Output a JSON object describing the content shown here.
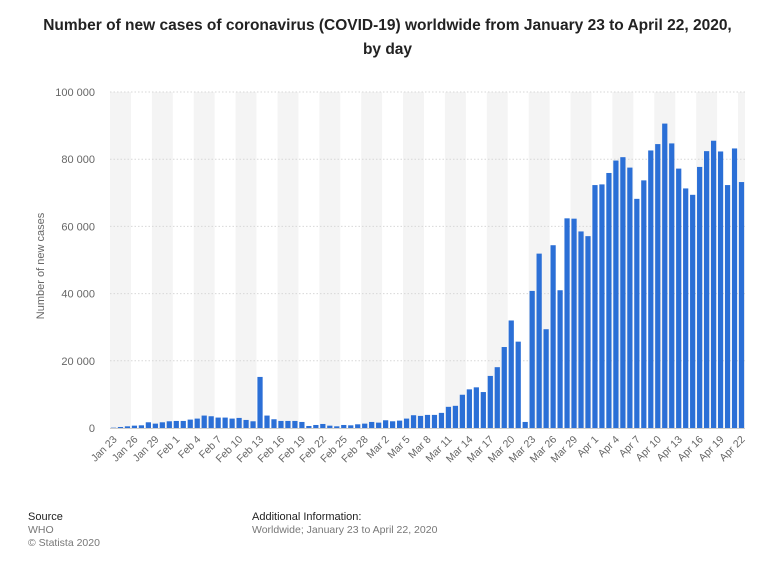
{
  "chart_data": {
    "type": "bar",
    "title": "Number of new cases of coronavirus (COVID-19) worldwide from January 23 to April 22, 2020, by day",
    "xlabel": "",
    "ylabel": "Number of new cases",
    "ylim": [
      0,
      100000
    ],
    "yticks": [
      0,
      20000,
      40000,
      60000,
      80000,
      100000
    ],
    "ytick_labels": [
      "0",
      "20 000",
      "40 000",
      "60 000",
      "80 000",
      "100 000"
    ],
    "grid": true,
    "bar_color": "#2b6fd6",
    "categories": [
      "Jan 23",
      "Jan 24",
      "Jan 25",
      "Jan 26",
      "Jan 27",
      "Jan 28",
      "Jan 29",
      "Jan 30",
      "Jan 31",
      "Feb 1",
      "Feb 2",
      "Feb 3",
      "Feb 4",
      "Feb 5",
      "Feb 6",
      "Feb 7",
      "Feb 8",
      "Feb 9",
      "Feb 10",
      "Feb 11",
      "Feb 12",
      "Feb 13",
      "Feb 14",
      "Feb 15",
      "Feb 16",
      "Feb 17",
      "Feb 18",
      "Feb 19",
      "Feb 20",
      "Feb 21",
      "Feb 22",
      "Feb 23",
      "Feb 24",
      "Feb 25",
      "Feb 26",
      "Feb 27",
      "Feb 28",
      "Feb 29",
      "Mar 1",
      "Mar 2",
      "Mar 3",
      "Mar 4",
      "Mar 5",
      "Mar 6",
      "Mar 7",
      "Mar 8",
      "Mar 9",
      "Mar 10",
      "Mar 11",
      "Mar 12",
      "Mar 13",
      "Mar 14",
      "Mar 15",
      "Mar 16",
      "Mar 17",
      "Mar 18",
      "Mar 19",
      "Mar 20",
      "Mar 21",
      "Mar 22",
      "Mar 23",
      "Mar 24",
      "Mar 25",
      "Mar 26",
      "Mar 27",
      "Mar 28",
      "Mar 29",
      "Mar 30",
      "Mar 31",
      "Apr 1",
      "Apr 2",
      "Apr 3",
      "Apr 4",
      "Apr 5",
      "Apr 6",
      "Apr 7",
      "Apr 8",
      "Apr 9",
      "Apr 10",
      "Apr 11",
      "Apr 12",
      "Apr 13",
      "Apr 14",
      "Apr 15",
      "Apr 16",
      "Apr 17",
      "Apr 18",
      "Apr 19",
      "Apr 20",
      "Apr 21",
      "Apr 22"
    ],
    "tick_labels": [
      "Jan 23",
      "Jan 26",
      "Jan 29",
      "Feb 1",
      "Feb 4",
      "Feb 7",
      "Feb 10",
      "Feb 13",
      "Feb 16",
      "Feb 19",
      "Feb 22",
      "Feb 25",
      "Feb 28",
      "Mar 2",
      "Mar 5",
      "Mar 8",
      "Mar 11",
      "Mar 14",
      "Mar 17",
      "Mar 20",
      "Mar 23",
      "Mar 26",
      "Mar 29",
      "Apr 1",
      "Apr 4",
      "Apr 7",
      "Apr 10",
      "Apr 13",
      "Apr 16",
      "Apr 19",
      "Apr 22"
    ],
    "values": [
      100,
      300,
      500,
      700,
      800,
      1700,
      1300,
      1700,
      2000,
      2100,
      2100,
      2500,
      2800,
      3700,
      3500,
      3100,
      3100,
      2800,
      3000,
      2400,
      2000,
      15200,
      3700,
      2600,
      2100,
      2100,
      2100,
      1800,
      600,
      900,
      1200,
      700,
      500,
      900,
      800,
      1100,
      1300,
      1800,
      1600,
      2300,
      2000,
      2200,
      2800,
      3800,
      3600,
      3900,
      3900,
      4500,
      6300,
      6600,
      9900,
      11500,
      12100,
      10700,
      15500,
      18100,
      24100,
      32000,
      25700,
      1800,
      40800,
      51900,
      29400,
      54400,
      41000,
      62400,
      62300,
      58500,
      57100,
      72300,
      72500,
      75900,
      79600,
      80600,
      77500,
      68200,
      73700,
      82600,
      84500,
      90600,
      84700,
      77200,
      71300,
      69400,
      77700,
      82400,
      85500,
      82300,
      72300,
      83200,
      73200
    ]
  },
  "footer": {
    "source_title": "Source",
    "source_text": "WHO",
    "copyright": "© Statista 2020",
    "additional_title": "Additional Information:",
    "additional_text": "Worldwide; January 23 to April 22, 2020"
  }
}
